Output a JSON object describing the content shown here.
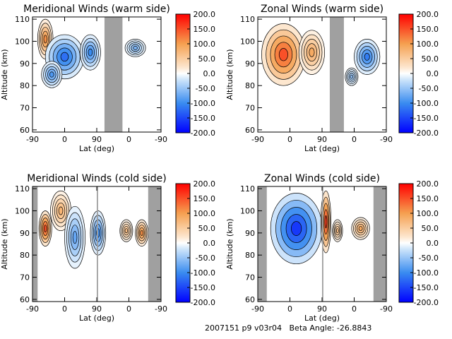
{
  "footer": {
    "run_id": "2007151 p9 v03r04",
    "beta_label": "Beta Angle:",
    "beta_value": "-26.8843"
  },
  "colors": {
    "neg_max": "#0000ff",
    "neg_mid": "#3a8cf0",
    "zero": "#ffffff",
    "pos_mid": "#f5a050",
    "pos_max": "#ff0000",
    "mask": "#a0a0a0"
  },
  "chart_data": [
    {
      "type": "heatmap",
      "title": "Meridional Winds (warm side)",
      "xlabel": "Lat (deg)",
      "ylabel": "Altitude (km)",
      "x_ticks": [
        "-90",
        "0",
        "90",
        "0",
        "-90"
      ],
      "y_ticks": [
        60,
        70,
        80,
        90,
        100,
        110
      ],
      "ylim": [
        59,
        111
      ],
      "colorbar_ticks": [
        "200.0",
        "150.0",
        "100.0",
        "50.0",
        "0.0",
        "-50.0",
        "-100.0",
        "-150.0",
        "-200.0"
      ],
      "colorbar_range": [
        -200,
        200
      ],
      "masked_x_ranges": [
        [
          0.56,
          0.7
        ]
      ],
      "blobs": [
        {
          "x": 0.1,
          "y": 101,
          "v": 110,
          "rx": 0.06,
          "ry": 9
        },
        {
          "x": 0.25,
          "y": 93,
          "v": -120,
          "rx": 0.15,
          "ry": 10
        },
        {
          "x": 0.15,
          "y": 85,
          "v": -90,
          "rx": 0.08,
          "ry": 6
        },
        {
          "x": 0.45,
          "y": 95,
          "v": -100,
          "rx": 0.08,
          "ry": 8
        },
        {
          "x": 0.8,
          "y": 97,
          "v": -70,
          "rx": 0.08,
          "ry": 4
        }
      ]
    },
    {
      "type": "heatmap",
      "title": "Zonal Winds (warm side)",
      "xlabel": "Lat (deg)",
      "ylabel": "Altitude (km)",
      "x_ticks": [
        "-90",
        "0",
        "90",
        "0",
        "-90"
      ],
      "y_ticks": [
        60,
        70,
        80,
        90,
        100,
        110
      ],
      "ylim": [
        59,
        111
      ],
      "colorbar_ticks": [
        "200.0",
        "150.0",
        "100.0",
        "50.0",
        "0.0",
        "-50.0",
        "-100.0",
        "-150.0",
        "-200.0"
      ],
      "colorbar_range": [
        -200,
        200
      ],
      "masked_x_ranges": [
        [
          0.56,
          0.67
        ]
      ],
      "blobs": [
        {
          "x": 0.2,
          "y": 94,
          "v": 150,
          "rx": 0.17,
          "ry": 14
        },
        {
          "x": 0.42,
          "y": 95,
          "v": 90,
          "rx": 0.1,
          "ry": 10
        },
        {
          "x": 0.85,
          "y": 93,
          "v": -110,
          "rx": 0.1,
          "ry": 8
        },
        {
          "x": 0.73,
          "y": 84,
          "v": -60,
          "rx": 0.05,
          "ry": 4
        }
      ]
    },
    {
      "type": "heatmap",
      "title": "Meridional Winds (cold side)",
      "xlabel": "Lat (deg)",
      "ylabel": "Altitude (km)",
      "x_ticks": [
        "-90",
        "0",
        "90",
        "0",
        "-90"
      ],
      "y_ticks": [
        60,
        70,
        80,
        90,
        100,
        110
      ],
      "ylim": [
        59,
        111
      ],
      "colorbar_ticks": [
        "200.0",
        "150.0",
        "100.0",
        "50.0",
        "0.0",
        "-50.0",
        "-100.0",
        "-150.0",
        "-200.0"
      ],
      "colorbar_range": [
        -200,
        200
      ],
      "masked_x_ranges": [
        [
          0.0,
          0.04
        ],
        [
          0.5,
          0.51
        ],
        [
          0.9,
          1.0
        ]
      ],
      "blobs": [
        {
          "x": 0.1,
          "y": 92,
          "v": 150,
          "rx": 0.05,
          "ry": 8
        },
        {
          "x": 0.22,
          "y": 100,
          "v": 80,
          "rx": 0.08,
          "ry": 9
        },
        {
          "x": 0.33,
          "y": 88,
          "v": -80,
          "rx": 0.08,
          "ry": 14
        },
        {
          "x": 0.51,
          "y": 90,
          "v": -100,
          "rx": 0.06,
          "ry": 10
        },
        {
          "x": 0.73,
          "y": 91,
          "v": 70,
          "rx": 0.05,
          "ry": 5
        },
        {
          "x": 0.85,
          "y": 90,
          "v": 110,
          "rx": 0.05,
          "ry": 6
        }
      ]
    },
    {
      "type": "heatmap",
      "title": "Zonal Winds (cold side)",
      "xlabel": "Lat (deg)",
      "ylabel": "Altitude (km)",
      "x_ticks": [
        "-90",
        "0",
        "90",
        "0",
        "-90"
      ],
      "y_ticks": [
        60,
        70,
        80,
        90,
        100,
        110
      ],
      "ylim": [
        59,
        111
      ],
      "colorbar_ticks": [
        "200.0",
        "150.0",
        "100.0",
        "50.0",
        "0.0",
        "-50.0",
        "-100.0",
        "-150.0",
        "-200.0"
      ],
      "colorbar_range": [
        -200,
        200
      ],
      "masked_x_ranges": [
        [
          0.0,
          0.07
        ],
        [
          0.5,
          0.51
        ],
        [
          0.9,
          1.0
        ]
      ],
      "blobs": [
        {
          "x": 0.3,
          "y": 92,
          "v": -160,
          "rx": 0.2,
          "ry": 16
        },
        {
          "x": 0.53,
          "y": 95,
          "v": 160,
          "rx": 0.04,
          "ry": 14
        },
        {
          "x": 0.62,
          "y": 91,
          "v": 70,
          "rx": 0.04,
          "ry": 5
        },
        {
          "x": 0.8,
          "y": 92,
          "v": 90,
          "rx": 0.07,
          "ry": 5
        }
      ]
    }
  ]
}
